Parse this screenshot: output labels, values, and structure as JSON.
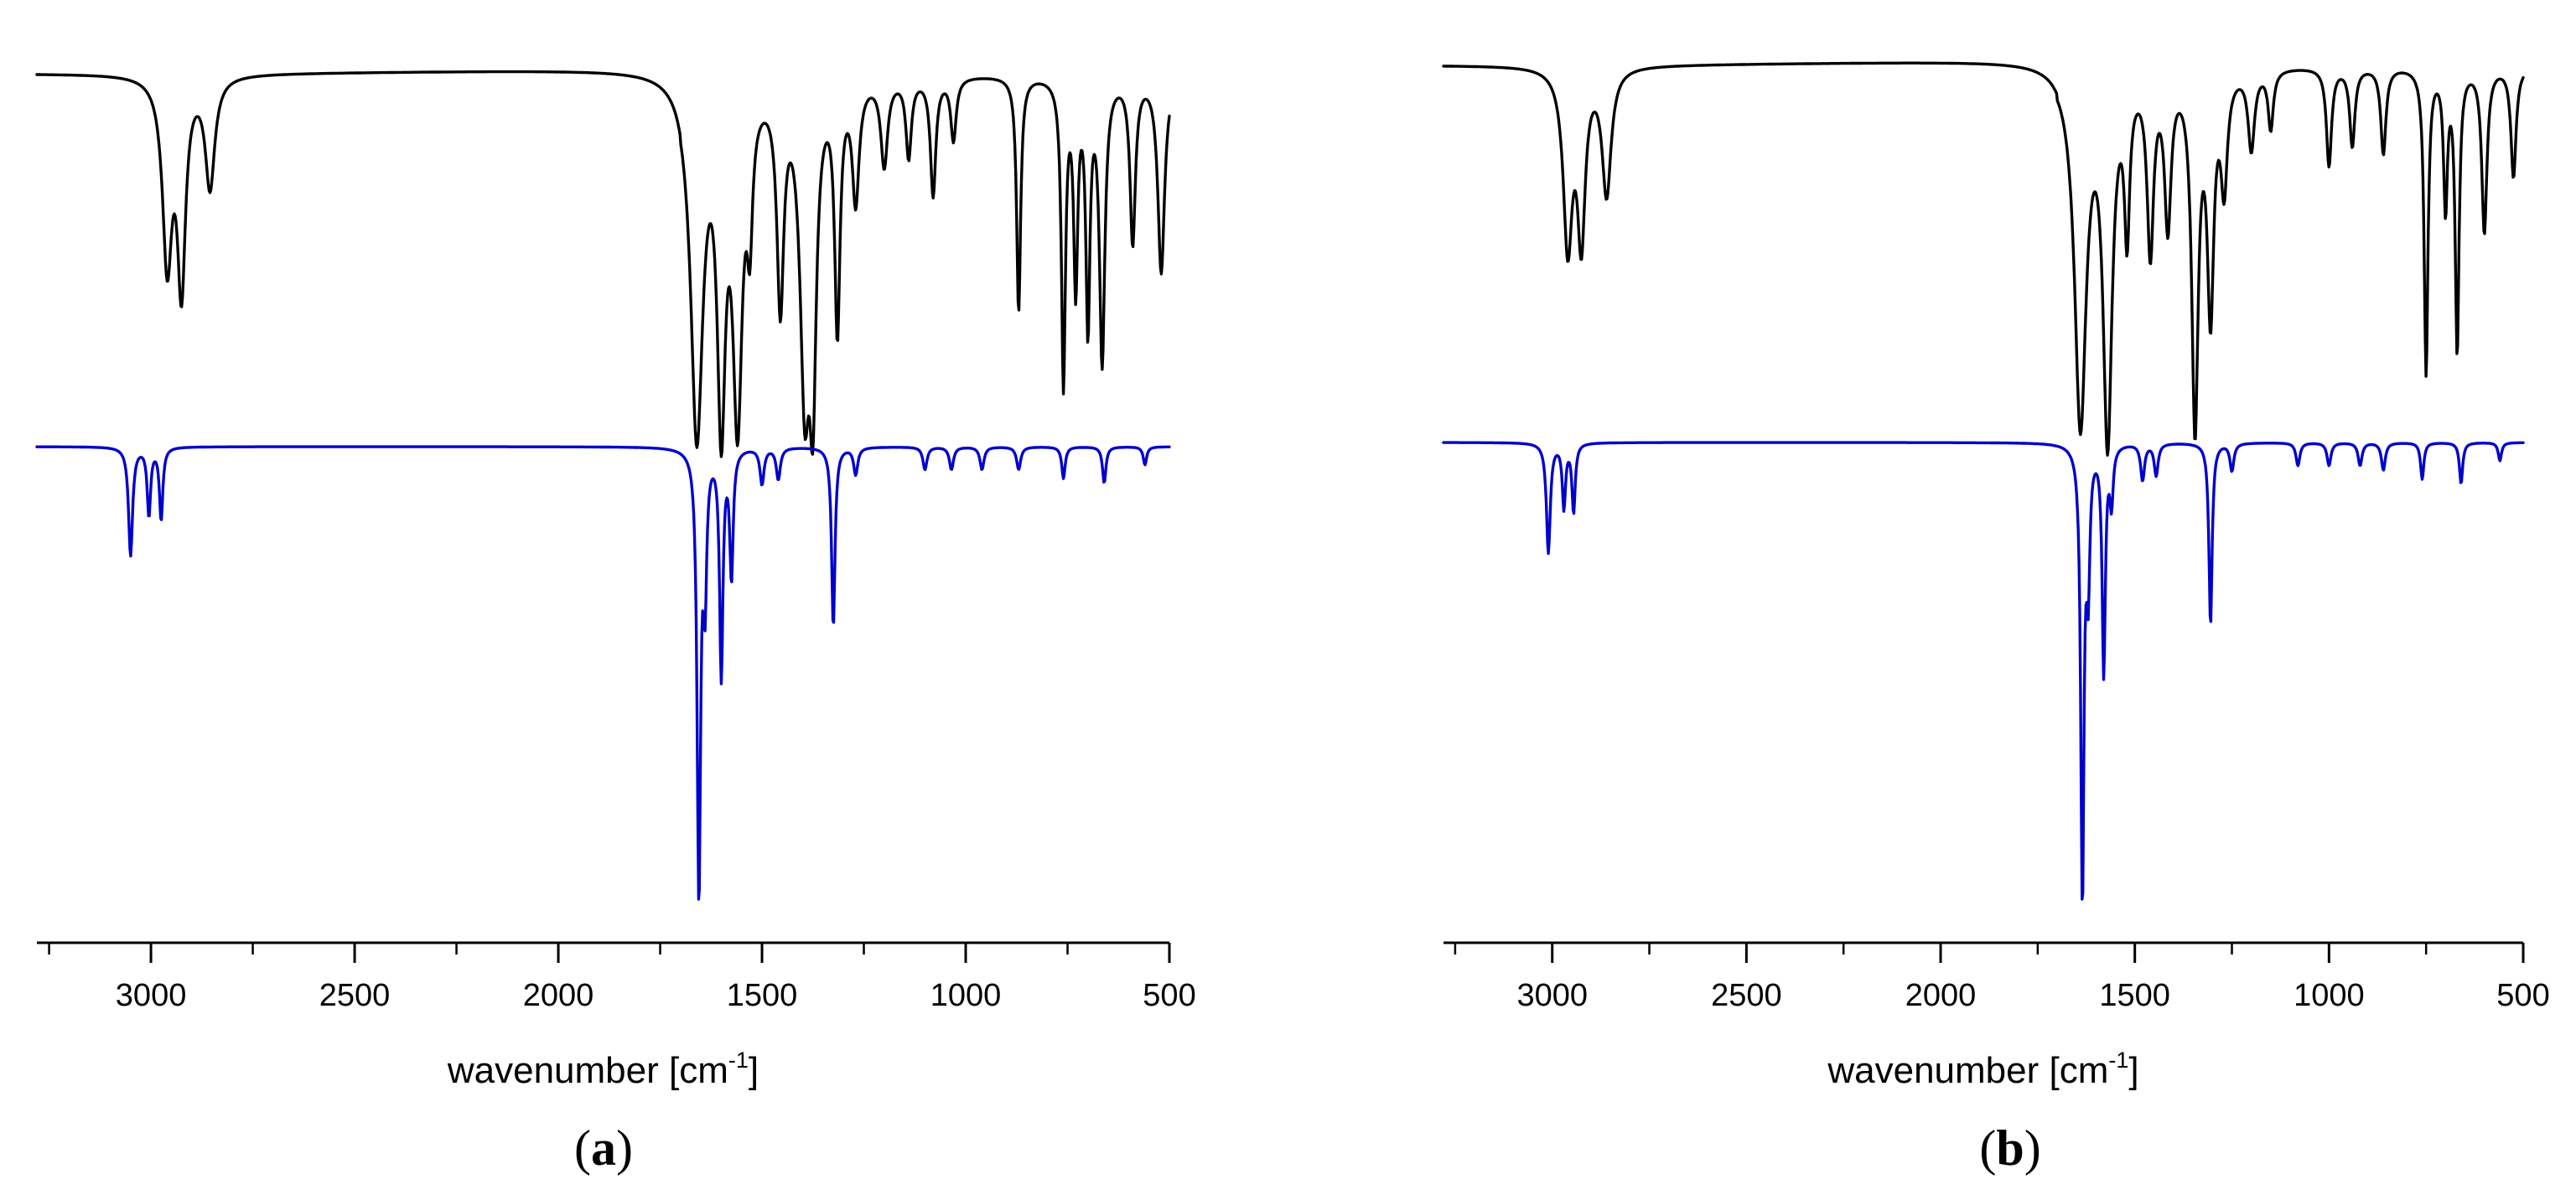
{
  "colors": {
    "experimental": "#000000",
    "calculated": "#0000cc"
  },
  "chart_data": [
    {
      "type": "line",
      "panel_label": "a",
      "xlabel": "wavenumber [cm",
      "xlabel_unit_sup": "-1",
      "xlabel_close": "]",
      "ylabel": "",
      "xlim": [
        3280,
        500
      ],
      "x_reversed": true,
      "ticks": [
        "3000",
        "2500",
        "2000",
        "1500",
        "1000",
        "500"
      ],
      "tick_values": [
        3000,
        2500,
        2000,
        1500,
        1000,
        500
      ],
      "minor_tick_values": [
        3250,
        2750,
        2250,
        1750,
        1250,
        750
      ],
      "grid": false,
      "legend": "none",
      "series": [
        {
          "color": "#000000",
          "baseline": 0.955,
          "peaks": [
            {
              "x": 2960,
              "depth": 0.47,
              "width": 14
            },
            {
              "x": 2925,
              "depth": 0.52,
              "width": 12
            },
            {
              "x": 2855,
              "depth": 0.28,
              "width": 14
            },
            {
              "x": 1660,
              "depth": 0.9,
              "width": 18
            },
            {
              "x": 1600,
              "depth": 0.8,
              "width": 12
            },
            {
              "x": 1560,
              "depth": 0.82,
              "width": 14
            },
            {
              "x": 1530,
              "depth": 0.3,
              "width": 8
            },
            {
              "x": 1455,
              "depth": 0.55,
              "width": 10
            },
            {
              "x": 1395,
              "depth": 0.75,
              "width": 14
            },
            {
              "x": 1375,
              "depth": 0.68,
              "width": 10
            },
            {
              "x": 1315,
              "depth": 0.62,
              "width": 8
            },
            {
              "x": 1270,
              "depth": 0.3,
              "width": 10
            },
            {
              "x": 1200,
              "depth": 0.22,
              "width": 10
            },
            {
              "x": 1140,
              "depth": 0.2,
              "width": 8
            },
            {
              "x": 1080,
              "depth": 0.3,
              "width": 8
            },
            {
              "x": 1030,
              "depth": 0.16,
              "width": 8
            },
            {
              "x": 870,
              "depth": 0.6,
              "width": 6
            },
            {
              "x": 760,
              "depth": 0.78,
              "width": 6
            },
            {
              "x": 730,
              "depth": 0.52,
              "width": 6
            },
            {
              "x": 700,
              "depth": 0.62,
              "width": 6
            },
            {
              "x": 665,
              "depth": 0.72,
              "width": 8
            },
            {
              "x": 590,
              "depth": 0.42,
              "width": 8
            },
            {
              "x": 520,
              "depth": 0.5,
              "width": 10
            }
          ]
        },
        {
          "color": "#0000cc",
          "baseline": 0.0,
          "peaks": [
            {
              "x": 3050,
              "depth": 0.24,
              "width": 6
            },
            {
              "x": 3005,
              "depth": 0.15,
              "width": 5
            },
            {
              "x": 2975,
              "depth": 0.16,
              "width": 5
            },
            {
              "x": 1655,
              "depth": 1.0,
              "width": 5
            },
            {
              "x": 1640,
              "depth": 0.3,
              "width": 5
            },
            {
              "x": 1600,
              "depth": 0.5,
              "width": 5
            },
            {
              "x": 1575,
              "depth": 0.28,
              "width": 5
            },
            {
              "x": 1500,
              "depth": 0.08,
              "width": 6
            },
            {
              "x": 1460,
              "depth": 0.07,
              "width": 6
            },
            {
              "x": 1325,
              "depth": 0.4,
              "width": 5
            },
            {
              "x": 1270,
              "depth": 0.06,
              "width": 6
            },
            {
              "x": 1100,
              "depth": 0.05,
              "width": 6
            },
            {
              "x": 1035,
              "depth": 0.05,
              "width": 6
            },
            {
              "x": 960,
              "depth": 0.05,
              "width": 6
            },
            {
              "x": 870,
              "depth": 0.05,
              "width": 6
            },
            {
              "x": 760,
              "depth": 0.07,
              "width": 5
            },
            {
              "x": 660,
              "depth": 0.08,
              "width": 5
            },
            {
              "x": 560,
              "depth": 0.04,
              "width": 5
            }
          ]
        }
      ]
    },
    {
      "type": "line",
      "panel_label": "b",
      "xlabel": "wavenumber [cm",
      "xlabel_unit_sup": "-1",
      "xlabel_close": "]",
      "ylabel": "",
      "xlim": [
        3280,
        500
      ],
      "x_reversed": true,
      "ticks": [
        "3000",
        "2500",
        "2000",
        "1500",
        "1000",
        "500"
      ],
      "tick_values": [
        3000,
        2500,
        2000,
        1500,
        1000,
        500
      ],
      "minor_tick_values": [
        3250,
        2750,
        2250,
        1750,
        1250,
        750
      ],
      "grid": false,
      "legend": "none",
      "series": [
        {
          "color": "#000000",
          "baseline": 0.955,
          "peaks": [
            {
              "x": 2960,
              "depth": 0.45,
              "width": 14
            },
            {
              "x": 2925,
              "depth": 0.42,
              "width": 12
            },
            {
              "x": 2860,
              "depth": 0.32,
              "width": 14
            },
            {
              "x": 1640,
              "depth": 0.9,
              "width": 18
            },
            {
              "x": 1570,
              "depth": 0.92,
              "width": 14
            },
            {
              "x": 1520,
              "depth": 0.38,
              "width": 8
            },
            {
              "x": 1460,
              "depth": 0.45,
              "width": 10
            },
            {
              "x": 1415,
              "depth": 0.38,
              "width": 10
            },
            {
              "x": 1345,
              "depth": 0.9,
              "width": 10
            },
            {
              "x": 1305,
              "depth": 0.6,
              "width": 10
            },
            {
              "x": 1270,
              "depth": 0.28,
              "width": 10
            },
            {
              "x": 1200,
              "depth": 0.2,
              "width": 10
            },
            {
              "x": 1150,
              "depth": 0.15,
              "width": 8
            },
            {
              "x": 1000,
              "depth": 0.25,
              "width": 8
            },
            {
              "x": 940,
              "depth": 0.2,
              "width": 8
            },
            {
              "x": 860,
              "depth": 0.22,
              "width": 8
            },
            {
              "x": 750,
              "depth": 0.78,
              "width": 6
            },
            {
              "x": 700,
              "depth": 0.35,
              "width": 6
            },
            {
              "x": 670,
              "depth": 0.72,
              "width": 6
            },
            {
              "x": 600,
              "depth": 0.42,
              "width": 8
            },
            {
              "x": 525,
              "depth": 0.28,
              "width": 8
            }
          ]
        },
        {
          "color": "#0000cc",
          "baseline": 0.0,
          "peaks": [
            {
              "x": 3010,
              "depth": 0.24,
              "width": 6
            },
            {
              "x": 2970,
              "depth": 0.14,
              "width": 5
            },
            {
              "x": 2945,
              "depth": 0.15,
              "width": 5
            },
            {
              "x": 1635,
              "depth": 1.0,
              "width": 5
            },
            {
              "x": 1620,
              "depth": 0.28,
              "width": 5
            },
            {
              "x": 1580,
              "depth": 0.5,
              "width": 5
            },
            {
              "x": 1560,
              "depth": 0.12,
              "width": 5
            },
            {
              "x": 1480,
              "depth": 0.08,
              "width": 6
            },
            {
              "x": 1445,
              "depth": 0.07,
              "width": 6
            },
            {
              "x": 1305,
              "depth": 0.4,
              "width": 5
            },
            {
              "x": 1250,
              "depth": 0.06,
              "width": 6
            },
            {
              "x": 1080,
              "depth": 0.05,
              "width": 6
            },
            {
              "x": 1000,
              "depth": 0.05,
              "width": 6
            },
            {
              "x": 920,
              "depth": 0.05,
              "width": 6
            },
            {
              "x": 860,
              "depth": 0.06,
              "width": 6
            },
            {
              "x": 760,
              "depth": 0.08,
              "width": 5
            },
            {
              "x": 660,
              "depth": 0.09,
              "width": 5
            },
            {
              "x": 560,
              "depth": 0.04,
              "width": 5
            }
          ]
        }
      ]
    }
  ]
}
